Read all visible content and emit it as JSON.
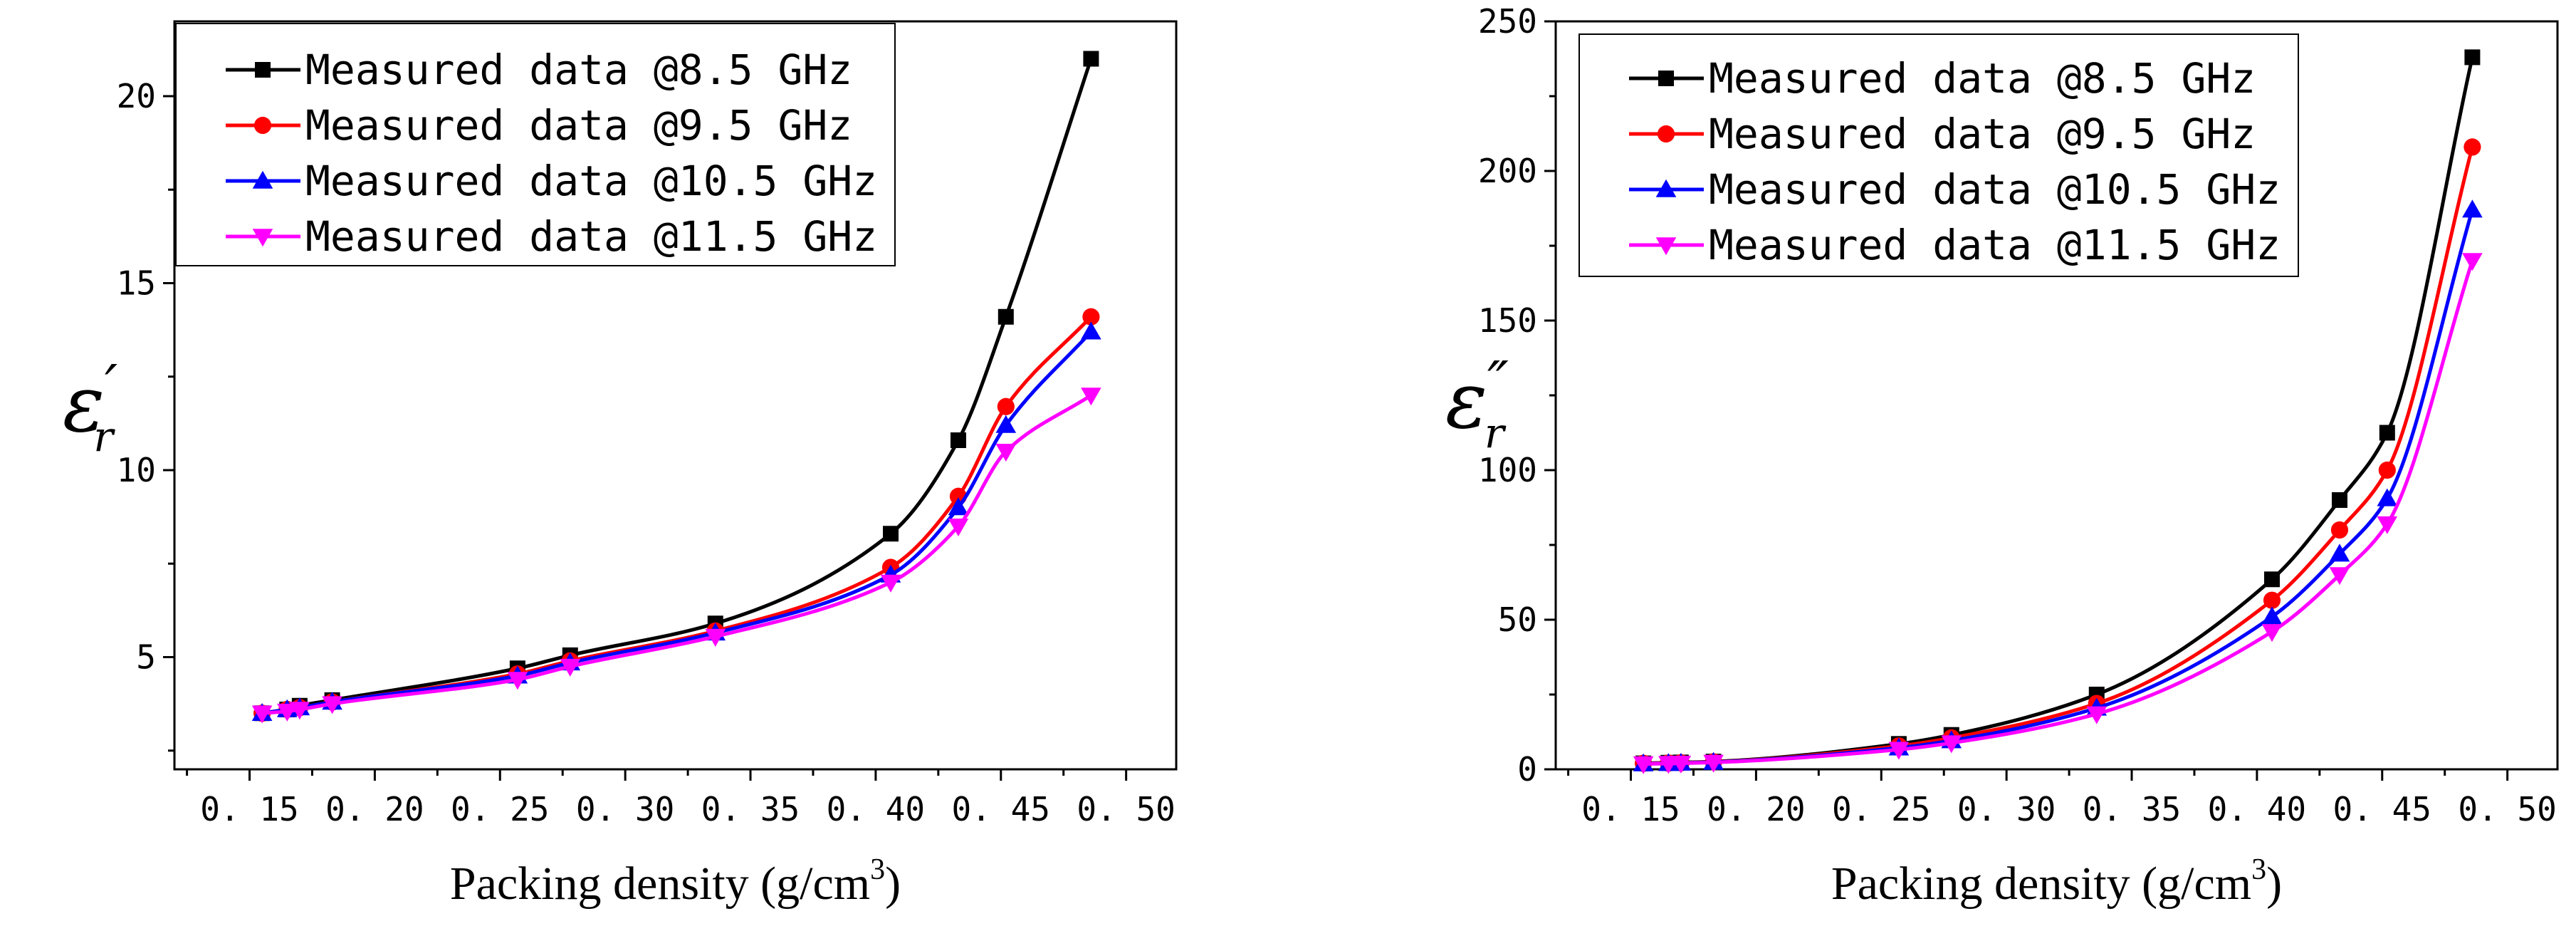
{
  "chart_data": [
    {
      "type": "line",
      "ylabel": "ε′r",
      "ylabel_symbol": "ε",
      "ylabel_prime": "′",
      "ylabel_sub": "r",
      "xlabel": "Packing density (g/cm",
      "xlabel_sup": "3",
      "xlabel_close": ")",
      "xlim": [
        0.12,
        0.52
      ],
      "ylim": [
        2,
        22
      ],
      "xticks": [
        0.15,
        0.2,
        0.25,
        0.3,
        0.35,
        0.4,
        0.45,
        0.5
      ],
      "xtick_labels": [
        "0. 15",
        "0. 20",
        "0. 25",
        "0. 30",
        "0. 35",
        "0. 40",
        "0. 45",
        "0. 50"
      ],
      "yticks": [
        5,
        10,
        15,
        20
      ],
      "ytick_labels": [
        "5",
        "10",
        "15",
        "20"
      ],
      "legend_position": "top-left",
      "x": [
        0.155,
        0.165,
        0.17,
        0.183,
        0.257,
        0.278,
        0.336,
        0.406,
        0.433,
        0.452,
        0.486
      ],
      "series": [
        {
          "name": "Measured data @8.5 GHz",
          "color": "#000000",
          "marker": "square",
          "values": [
            3.5,
            3.6,
            3.7,
            3.85,
            4.7,
            5.05,
            5.9,
            8.3,
            10.8,
            14.1,
            21.0
          ]
        },
        {
          "name": "Measured data @9.5 GHz",
          "color": "#ff0000",
          "marker": "circle",
          "values": [
            3.5,
            3.6,
            3.65,
            3.8,
            4.55,
            4.9,
            5.7,
            7.4,
            9.3,
            11.7,
            14.1
          ]
        },
        {
          "name": "Measured data @10.5 GHz",
          "color": "#0000ff",
          "marker": "triangle-up",
          "values": [
            3.5,
            3.6,
            3.65,
            3.8,
            4.5,
            4.85,
            5.65,
            7.2,
            9.0,
            11.2,
            13.7
          ]
        },
        {
          "name": "Measured data @11.5 GHz",
          "color": "#ff00ff",
          "marker": "triangle-down",
          "values": [
            3.5,
            3.55,
            3.6,
            3.75,
            4.4,
            4.75,
            5.55,
            7.0,
            8.5,
            10.5,
            12.0
          ]
        }
      ]
    },
    {
      "type": "line",
      "ylabel": "ε″r",
      "ylabel_symbol": "ε",
      "ylabel_prime": "″",
      "ylabel_sub": "r",
      "xlabel": "Packing density (g/cm",
      "xlabel_sup": "3",
      "xlabel_close": ")",
      "xlim": [
        0.12,
        0.52
      ],
      "ylim": [
        0,
        250
      ],
      "xticks": [
        0.15,
        0.2,
        0.25,
        0.3,
        0.35,
        0.4,
        0.45,
        0.5
      ],
      "xtick_labels": [
        "0. 15",
        "0. 20",
        "0. 25",
        "0. 30",
        "0. 35",
        "0. 40",
        "0. 45",
        "0. 50"
      ],
      "yticks": [
        0,
        50,
        100,
        150,
        200,
        250
      ],
      "ytick_labels": [
        "0",
        "50",
        "100",
        "150",
        "200",
        "250"
      ],
      "legend_position": "top-left",
      "x": [
        0.155,
        0.165,
        0.17,
        0.183,
        0.257,
        0.278,
        0.336,
        0.406,
        0.433,
        0.452,
        0.486
      ],
      "series": [
        {
          "name": "Measured data @8.5 GHz",
          "color": "#000000",
          "marker": "square",
          "values": [
            2.0,
            2.2,
            2.3,
            2.6,
            8.5,
            11.5,
            25,
            63.5,
            90,
            112.5,
            238
          ]
        },
        {
          "name": "Measured data @9.5 GHz",
          "color": "#ff0000",
          "marker": "circle",
          "values": [
            2.0,
            2.1,
            2.2,
            2.5,
            7.8,
            10.5,
            22,
            56.5,
            80,
            100,
            208
          ]
        },
        {
          "name": "Measured data @10.5 GHz",
          "color": "#0000ff",
          "marker": "triangle-up",
          "values": [
            1.9,
            2.0,
            2.1,
            2.4,
            7.2,
            9.6,
            20.5,
            51,
            72,
            90.5,
            187
          ]
        },
        {
          "name": "Measured data @11.5 GHz",
          "color": "#ff00ff",
          "marker": "triangle-down",
          "values": [
            1.8,
            1.9,
            2.0,
            2.3,
            6.6,
            8.8,
            18.5,
            46,
            65,
            82,
            170
          ]
        }
      ]
    }
  ]
}
